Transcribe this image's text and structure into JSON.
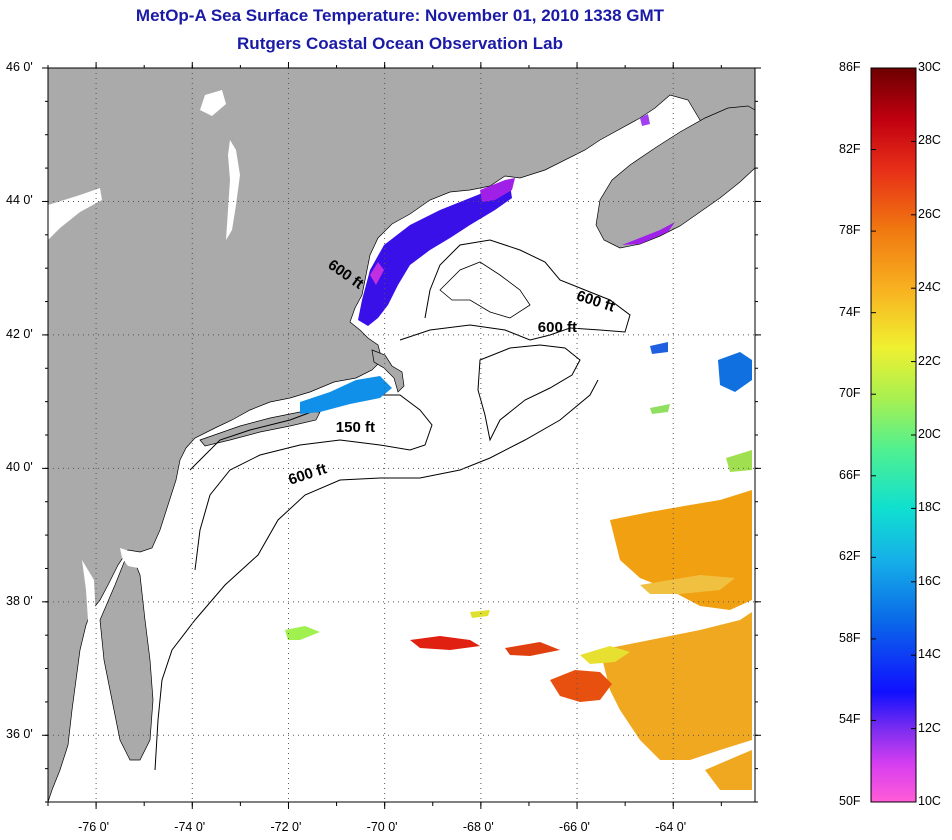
{
  "title": {
    "line1": "MetOp-A Sea Surface Temperature:  November 01, 2010 1338 GMT",
    "line2": "Rutgers Coastal Ocean Observation Lab"
  },
  "map": {
    "lat_labels": [
      {
        "value": 46,
        "label": "46 0'"
      },
      {
        "value": 44,
        "label": "44 0'"
      },
      {
        "value": 42,
        "label": "42 0'"
      },
      {
        "value": 40,
        "label": "40 0'"
      },
      {
        "value": 38,
        "label": "38 0'"
      },
      {
        "value": 36,
        "label": "36 0'"
      }
    ],
    "lon_labels": [
      {
        "value": -76,
        "label": "-76 0'"
      },
      {
        "value": -74,
        "label": "-74 0'"
      },
      {
        "value": -72,
        "label": "-72 0'"
      },
      {
        "value": -70,
        "label": "-70 0'"
      },
      {
        "value": -68,
        "label": "-68 0'"
      },
      {
        "value": -66,
        "label": "-66 0'"
      },
      {
        "value": -64,
        "label": "-64 0'"
      }
    ],
    "lat_range": [
      35,
      46
    ],
    "lon_range": [
      -77,
      -62.3
    ],
    "contour_labels": [
      {
        "text": "600 ft",
        "lat": 42.9,
        "lon": -70.8,
        "rotate": 35
      },
      {
        "text": "600 ft",
        "lat": 42.5,
        "lon": -65.6,
        "rotate": 18
      },
      {
        "text": "600 ft",
        "lat": 42.1,
        "lon": -66.4,
        "rotate": 0
      },
      {
        "text": "150 ft",
        "lat": 40.6,
        "lon": -70.6,
        "rotate": 0
      },
      {
        "text": "600 ft",
        "lat": 39.9,
        "lon": -71.6,
        "rotate": -18
      }
    ]
  },
  "colorbar": {
    "f_labels": [
      "86F",
      "82F",
      "78F",
      "74F",
      "70F",
      "66F",
      "62F",
      "58F",
      "54F",
      "50F"
    ],
    "c_labels": [
      "30C",
      "28C",
      "26C",
      "24C",
      "22C",
      "20C",
      "18C",
      "16C",
      "14C",
      "12C",
      "10C"
    ],
    "min_c": 10,
    "max_c": 30
  },
  "colors": {
    "land": "#aaaaaa",
    "ocean": "#ffffff",
    "title": "#1a1aa6"
  }
}
